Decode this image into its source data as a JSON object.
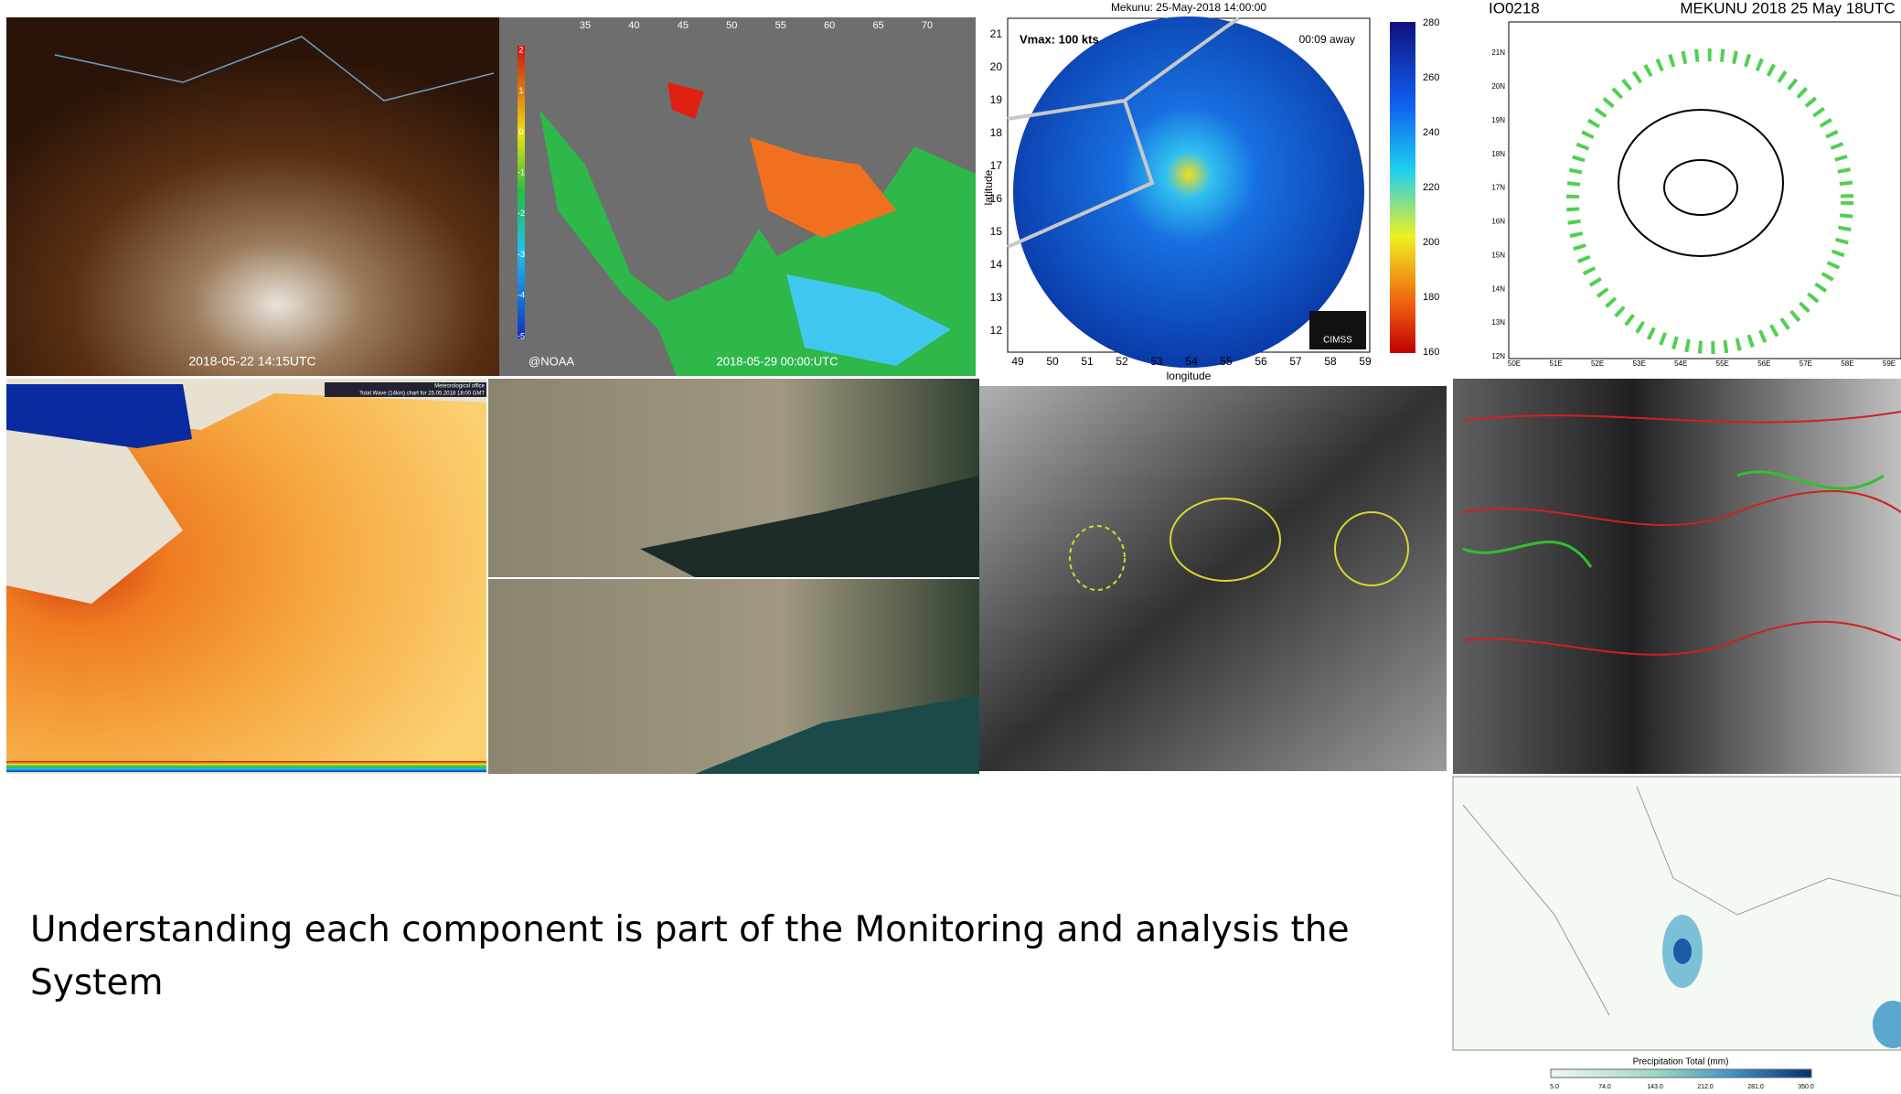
{
  "caption": "Understanding each component is part of the Monitoring and analysis the System",
  "satellite_image": {
    "timestamp": "2018-05-22 14:15UTC"
  },
  "sst_map": {
    "credit": "@NOAA",
    "timestamp": "2018-05-29 00:00:UTC",
    "lon_labels": [
      "35",
      "40",
      "45",
      "50",
      "55",
      "60",
      "65",
      "70"
    ],
    "scale_labels": [
      "2",
      "1",
      "0",
      "-1",
      "-2",
      "-3",
      "-4",
      "-5"
    ]
  },
  "radar": {
    "title": "Mekunu: 25-May-2018 14:00:00",
    "vmax": "Vmax: 100 kts",
    "away": "00:09 away",
    "y_label": "latitude",
    "x_label": "longitude",
    "logo": "CIMSS",
    "lat_ticks": [
      "21",
      "20",
      "19",
      "18",
      "17",
      "16",
      "15",
      "14",
      "13",
      "12"
    ],
    "lon_ticks": [
      "49",
      "50",
      "51",
      "52",
      "53",
      "54",
      "55",
      "56",
      "57",
      "58",
      "59"
    ],
    "colorbar_ticks": [
      "280",
      "260",
      "240",
      "220",
      "200",
      "180",
      "160"
    ]
  },
  "wind_chart": {
    "id": "IO0218",
    "title": "MEKUNU 2018 25 May 18UTC",
    "lat_ticks": [
      "21N",
      "20N",
      "19N",
      "18N",
      "17N",
      "16N",
      "15N",
      "14N",
      "13N",
      "12N"
    ],
    "lon_ticks": [
      "50E",
      "51E",
      "52E",
      "53E",
      "54E",
      "55E",
      "56E",
      "57E",
      "58E",
      "59E"
    ]
  },
  "wave_chart": {
    "org": "Meteorological office",
    "title": "Total Wave (14km) chart for 25.05.2018 18:00 GMT"
  },
  "precip": {
    "label": "Precipitation Total (mm)",
    "ticks": [
      "5.0",
      "74.0",
      "143.0",
      "212.0",
      "281.0",
      "350.0"
    ]
  }
}
